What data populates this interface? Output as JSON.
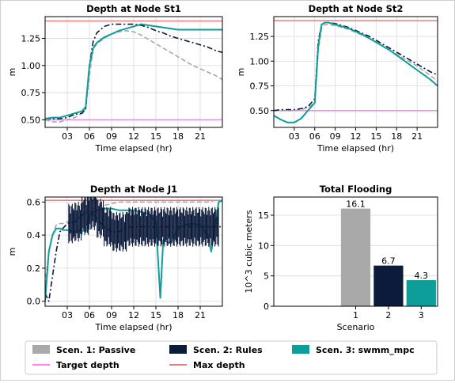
{
  "chart_data": [
    {
      "type": "line",
      "title": "Depth at Node St1",
      "xlabel": "Time elapsed (hr)",
      "ylabel": "m",
      "xlim": [
        0,
        24
      ],
      "ylim": [
        0.43,
        1.45
      ],
      "xticks": [
        3,
        6,
        9,
        12,
        15,
        18,
        21
      ],
      "xtick_labels": [
        "03",
        "06",
        "09",
        "12",
        "15",
        "18",
        "21"
      ],
      "yticks": [
        0.5,
        0.75,
        1.0,
        1.25
      ],
      "ytick_labels": [
        "0.50",
        "0.75",
        "1.00",
        "1.25"
      ],
      "hlines": [
        {
          "name": "Max depth",
          "y": 1.41,
          "color": "#e88080"
        },
        {
          "name": "Target depth",
          "y": 0.5,
          "color": "#ff7fff"
        }
      ],
      "series": [
        {
          "name": "Scen. 1: Passive",
          "color": "#a9a9a9",
          "dash": "dashed",
          "x": [
            0,
            1,
            2,
            3,
            4,
            5,
            5.5,
            6,
            6.5,
            7,
            8,
            9,
            10,
            11,
            12,
            13,
            14,
            15,
            16,
            17,
            18,
            19,
            20,
            21,
            22,
            23,
            24
          ],
          "y": [
            0.5,
            0.48,
            0.48,
            0.5,
            0.52,
            0.56,
            0.6,
            0.9,
            1.15,
            1.2,
            1.25,
            1.29,
            1.31,
            1.32,
            1.31,
            1.28,
            1.24,
            1.2,
            1.16,
            1.12,
            1.08,
            1.04,
            1.0,
            0.97,
            0.94,
            0.91,
            0.87
          ]
        },
        {
          "name": "Scen. 2: Rules",
          "color": "#0d1b3a",
          "dash": "dashdot",
          "x": [
            0,
            1,
            2,
            3,
            4,
            5,
            5.5,
            6,
            6.5,
            7,
            8,
            9,
            10,
            11,
            12,
            13,
            14,
            15,
            16,
            17,
            18,
            19,
            20,
            21,
            22,
            23,
            24
          ],
          "y": [
            0.51,
            0.51,
            0.51,
            0.52,
            0.55,
            0.56,
            0.6,
            1.0,
            1.22,
            1.3,
            1.36,
            1.38,
            1.38,
            1.38,
            1.38,
            1.37,
            1.35,
            1.32,
            1.3,
            1.27,
            1.25,
            1.23,
            1.21,
            1.19,
            1.17,
            1.14,
            1.12
          ]
        },
        {
          "name": "Scen. 3: swmm_mpc",
          "color": "#0e9e9a",
          "dash": "solid",
          "x": [
            0,
            1,
            2,
            3,
            4,
            5,
            5.5,
            6,
            6.5,
            7,
            8,
            9,
            10,
            11,
            12,
            13,
            14,
            15,
            16,
            17,
            18,
            19,
            20,
            21,
            22,
            23,
            24
          ],
          "y": [
            0.51,
            0.52,
            0.52,
            0.54,
            0.56,
            0.58,
            0.62,
            1.0,
            1.16,
            1.21,
            1.26,
            1.29,
            1.32,
            1.34,
            1.36,
            1.38,
            1.37,
            1.36,
            1.35,
            1.34,
            1.33,
            1.33,
            1.33,
            1.33,
            1.33,
            1.33,
            1.33
          ]
        }
      ]
    },
    {
      "type": "line",
      "title": "Depth at Node St2",
      "xlabel": "Time elapsed (hr)",
      "ylabel": "m",
      "xlim": [
        0,
        24
      ],
      "ylim": [
        0.33,
        1.45
      ],
      "xticks": [
        3,
        6,
        9,
        12,
        15,
        18,
        21
      ],
      "xtick_labels": [
        "03",
        "06",
        "09",
        "12",
        "15",
        "18",
        "21"
      ],
      "yticks": [
        0.5,
        0.75,
        1.0,
        1.25
      ],
      "ytick_labels": [
        "0.50",
        "0.75",
        "1.00",
        "1.25"
      ],
      "hlines": [
        {
          "name": "Max depth",
          "y": 1.41,
          "color": "#e88080"
        },
        {
          "name": "Target depth",
          "y": 0.5,
          "color": "#ff7fff"
        }
      ],
      "series": [
        {
          "name": "Scen. 1: Passive",
          "color": "#a9a9a9",
          "dash": "dashed",
          "x": [
            0,
            1,
            2,
            3,
            4,
            5,
            6,
            6.5,
            7,
            7.5,
            8,
            9,
            10,
            11,
            12,
            13,
            14,
            15,
            16,
            17,
            18,
            19,
            20,
            21,
            22,
            23,
            24
          ],
          "y": [
            0.5,
            0.5,
            0.5,
            0.5,
            0.51,
            0.53,
            0.58,
            1.1,
            1.33,
            1.37,
            1.37,
            1.36,
            1.34,
            1.32,
            1.29,
            1.26,
            1.23,
            1.19,
            1.15,
            1.11,
            1.07,
            1.03,
            0.99,
            0.95,
            0.9,
            0.85,
            0.8
          ]
        },
        {
          "name": "Scen. 2: Rules",
          "color": "#0d1b3a",
          "dash": "dashdot",
          "x": [
            0,
            1,
            2,
            3,
            4,
            5,
            6,
            6.5,
            7,
            7.5,
            8,
            9,
            10,
            11,
            12,
            13,
            14,
            15,
            16,
            17,
            18,
            19,
            20,
            21,
            22,
            23,
            24
          ],
          "y": [
            0.5,
            0.51,
            0.51,
            0.51,
            0.52,
            0.54,
            0.62,
            1.2,
            1.37,
            1.39,
            1.39,
            1.38,
            1.36,
            1.34,
            1.31,
            1.28,
            1.25,
            1.21,
            1.17,
            1.13,
            1.09,
            1.05,
            1.01,
            0.97,
            0.93,
            0.89,
            0.86
          ]
        },
        {
          "name": "Scen. 3: swmm_mpc",
          "color": "#0e9e9a",
          "dash": "solid",
          "x": [
            0,
            1,
            2,
            3,
            4,
            5,
            6,
            6.5,
            7,
            7.5,
            8,
            9,
            10,
            11,
            12,
            13,
            14,
            15,
            16,
            17,
            18,
            19,
            20,
            21,
            22,
            23,
            24
          ],
          "y": [
            0.45,
            0.41,
            0.38,
            0.38,
            0.42,
            0.5,
            0.58,
            1.15,
            1.37,
            1.39,
            1.39,
            1.37,
            1.35,
            1.33,
            1.3,
            1.27,
            1.23,
            1.19,
            1.15,
            1.11,
            1.06,
            1.01,
            0.96,
            0.91,
            0.86,
            0.81,
            0.75
          ]
        }
      ]
    },
    {
      "type": "line",
      "title": "Depth at Node J1",
      "xlabel": "Time elapsed (hr)",
      "ylabel": "m",
      "xlim": [
        0,
        24
      ],
      "ylim": [
        -0.03,
        0.63
      ],
      "xticks": [
        3,
        6,
        9,
        12,
        15,
        18,
        21
      ],
      "xtick_labels": [
        "03",
        "06",
        "09",
        "12",
        "15",
        "18",
        "21"
      ],
      "yticks": [
        0.0,
        0.2,
        0.4,
        0.6
      ],
      "ytick_labels": [
        "0.0",
        "0.2",
        "0.4",
        "0.6"
      ],
      "hlines": [
        {
          "name": "Max depth",
          "y": 0.61,
          "color": "#e88080"
        }
      ],
      "series": [
        {
          "name": "Scen. 1: Passive",
          "color": "#a9a9a9",
          "dash": "dashed",
          "x": [
            0,
            0.5,
            1,
            1.5,
            2,
            2.5,
            3,
            4,
            5,
            6,
            7,
            8,
            9,
            10,
            11,
            12,
            13,
            14,
            15,
            16,
            17,
            18,
            19,
            20,
            21,
            22,
            23,
            24
          ],
          "y": [
            0.1,
            0.3,
            0.4,
            0.46,
            0.47,
            0.47,
            0.48,
            0.5,
            0.52,
            0.55,
            0.57,
            0.58,
            0.59,
            0.6,
            0.6,
            0.6,
            0.6,
            0.6,
            0.6,
            0.6,
            0.6,
            0.6,
            0.6,
            0.6,
            0.6,
            0.6,
            0.61,
            0.61
          ]
        },
        {
          "name": "Scen. 2: Rules",
          "color": "#0d1b3a",
          "dash": "dashdot",
          "x": [
            0,
            0.5,
            1,
            1.5,
            2,
            3,
            4,
            5,
            6,
            7,
            8,
            9,
            10,
            11,
            12,
            13,
            14,
            15,
            16,
            17,
            18,
            19,
            20,
            21,
            22,
            23,
            24
          ],
          "y": [
            0.05,
            0.0,
            0.15,
            0.3,
            0.42,
            0.47,
            0.48,
            0.52,
            0.55,
            0.5,
            0.45,
            0.42,
            0.42,
            0.45,
            0.45,
            0.45,
            0.45,
            0.45,
            0.45,
            0.45,
            0.45,
            0.45,
            0.45,
            0.45,
            0.45,
            0.45,
            0.45
          ]
        },
        {
          "name": "Scen. 3: swmm_mpc",
          "color": "#0e9e9a",
          "dash": "solid",
          "x": [
            0,
            0.5,
            1,
            1.5,
            2,
            2.5,
            3,
            4,
            5,
            5.5,
            6,
            6.5,
            7,
            8,
            9,
            10,
            11,
            12,
            13,
            14,
            15,
            15.3,
            15.6,
            16,
            17,
            18,
            19,
            20,
            21,
            22,
            22.5,
            23,
            23.5,
            24
          ],
          "y": [
            0.0,
            0.3,
            0.4,
            0.44,
            0.44,
            0.43,
            0.43,
            0.42,
            0.43,
            0.42,
            0.52,
            0.54,
            0.55,
            0.56,
            0.56,
            0.55,
            0.55,
            0.55,
            0.54,
            0.53,
            0.48,
            0.25,
            0.02,
            0.37,
            0.35,
            0.44,
            0.46,
            0.47,
            0.46,
            0.4,
            0.3,
            0.45,
            0.6,
            0.61
          ]
        }
      ]
    },
    {
      "type": "bar",
      "title": "Total Flooding",
      "xlabel": "Scenario",
      "ylabel": "10^3 cubic meters",
      "categories": [
        "1",
        "2",
        "3"
      ],
      "values": [
        16.1,
        6.7,
        4.3
      ],
      "data_labels": [
        "16.1",
        "6.7",
        "4.3"
      ],
      "colors": [
        "#a9a9a9",
        "#0d1b3a",
        "#0e9e9a"
      ],
      "xlim": [
        -1.5,
        3.5
      ],
      "ylim": [
        0,
        18
      ],
      "yticks": [
        0,
        5,
        10,
        15
      ],
      "ytick_labels": [
        "0",
        "5",
        "10",
        "15"
      ]
    }
  ],
  "legend": {
    "placement": "bottom",
    "items": [
      {
        "label": "Scen. 1: Passive",
        "color": "#a9a9a9",
        "kind": "box"
      },
      {
        "label": "Scen. 2: Rules",
        "color": "#0d1b3a",
        "kind": "box"
      },
      {
        "label": "Scen. 3: swmm_mpc",
        "color": "#0e9e9a",
        "kind": "box"
      },
      {
        "label": "Target depth",
        "color": "#ff7fff",
        "kind": "line"
      },
      {
        "label": "Max depth",
        "color": "#e88080",
        "kind": "line"
      }
    ]
  }
}
